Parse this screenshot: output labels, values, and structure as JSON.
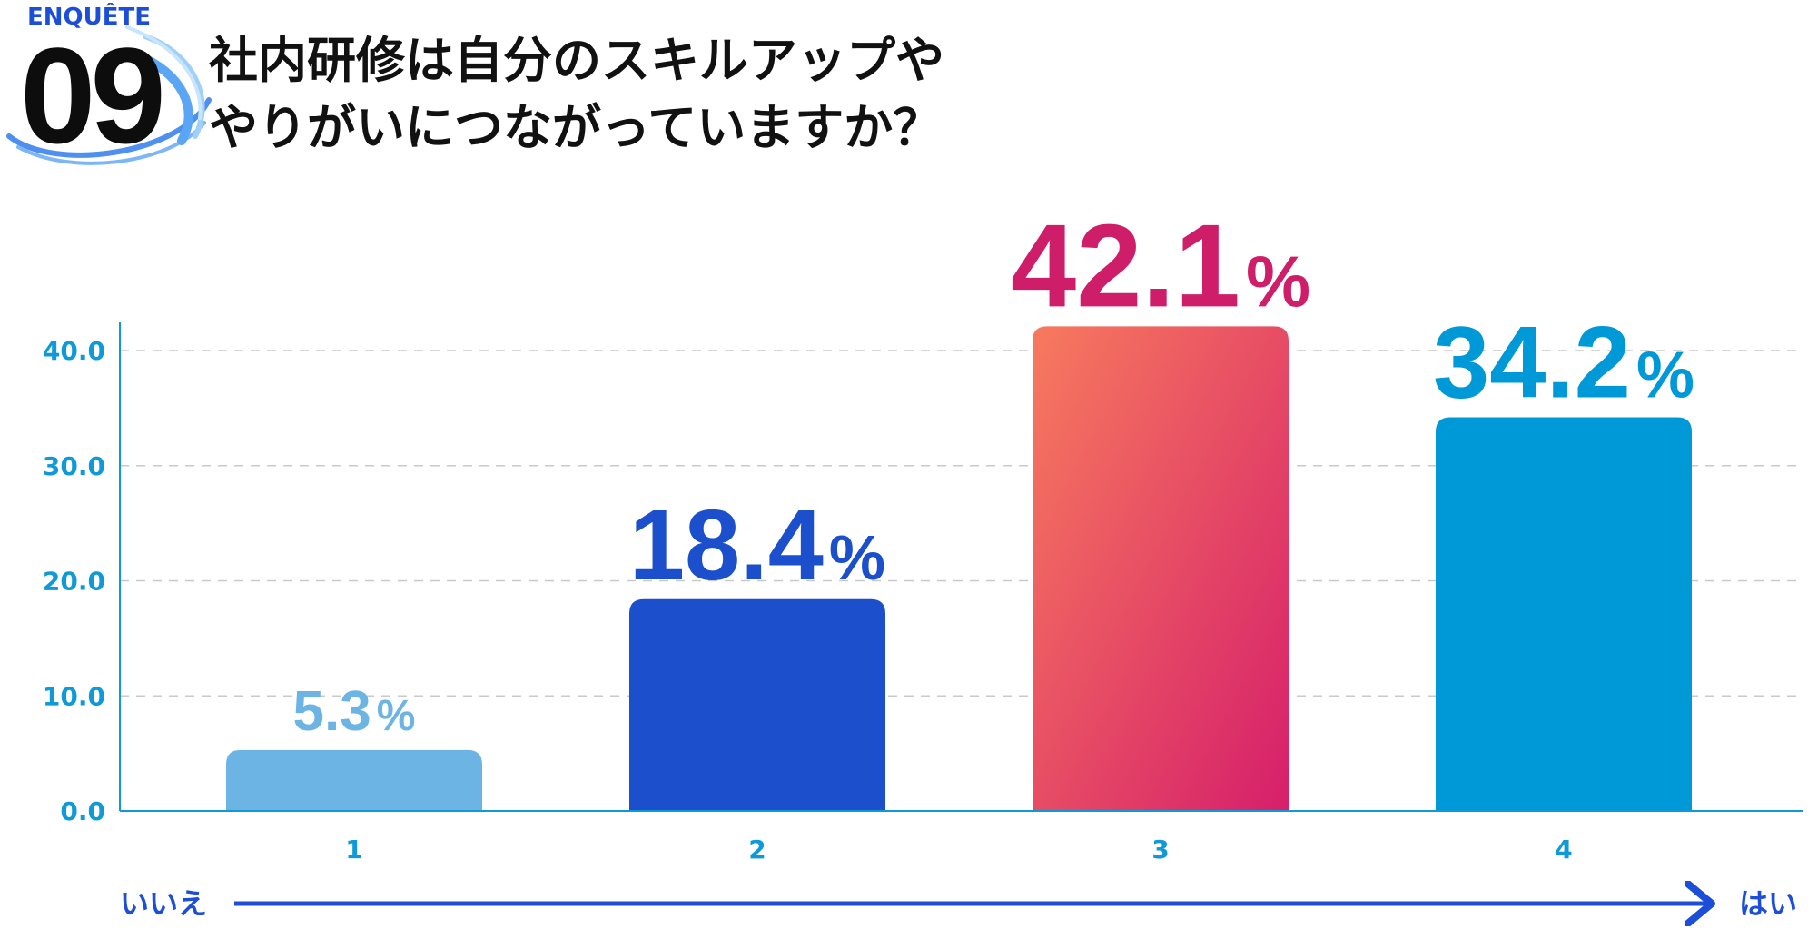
{
  "badge": {
    "label": "ENQUÊTE",
    "number": "09"
  },
  "title": {
    "line1": "社内研修は自分のスキルアップや",
    "line2": "やりがいにつながっていますか？"
  },
  "chart_data": {
    "type": "bar",
    "categories": [
      "1",
      "2",
      "3",
      "4"
    ],
    "values": [
      5.3,
      18.4,
      42.1,
      34.2
    ],
    "value_labels": [
      "5.3",
      "18.4",
      "42.1",
      "34.2"
    ],
    "value_unit": "%",
    "yticks": [
      "0.0",
      "10.0",
      "20.0",
      "30.0",
      "40.0"
    ],
    "ylim": [
      0,
      40
    ],
    "grid": true,
    "colors": [
      "#6cb4e4",
      "#1c4fcb",
      "gradient:#f77a5e-#d61f6b",
      "#0099d8"
    ],
    "label_colors": [
      "#6cb4e4",
      "#1c4fcb",
      "#cf1e69",
      "#0099d8"
    ],
    "scale_left": "いいえ",
    "scale_right": "はい"
  }
}
